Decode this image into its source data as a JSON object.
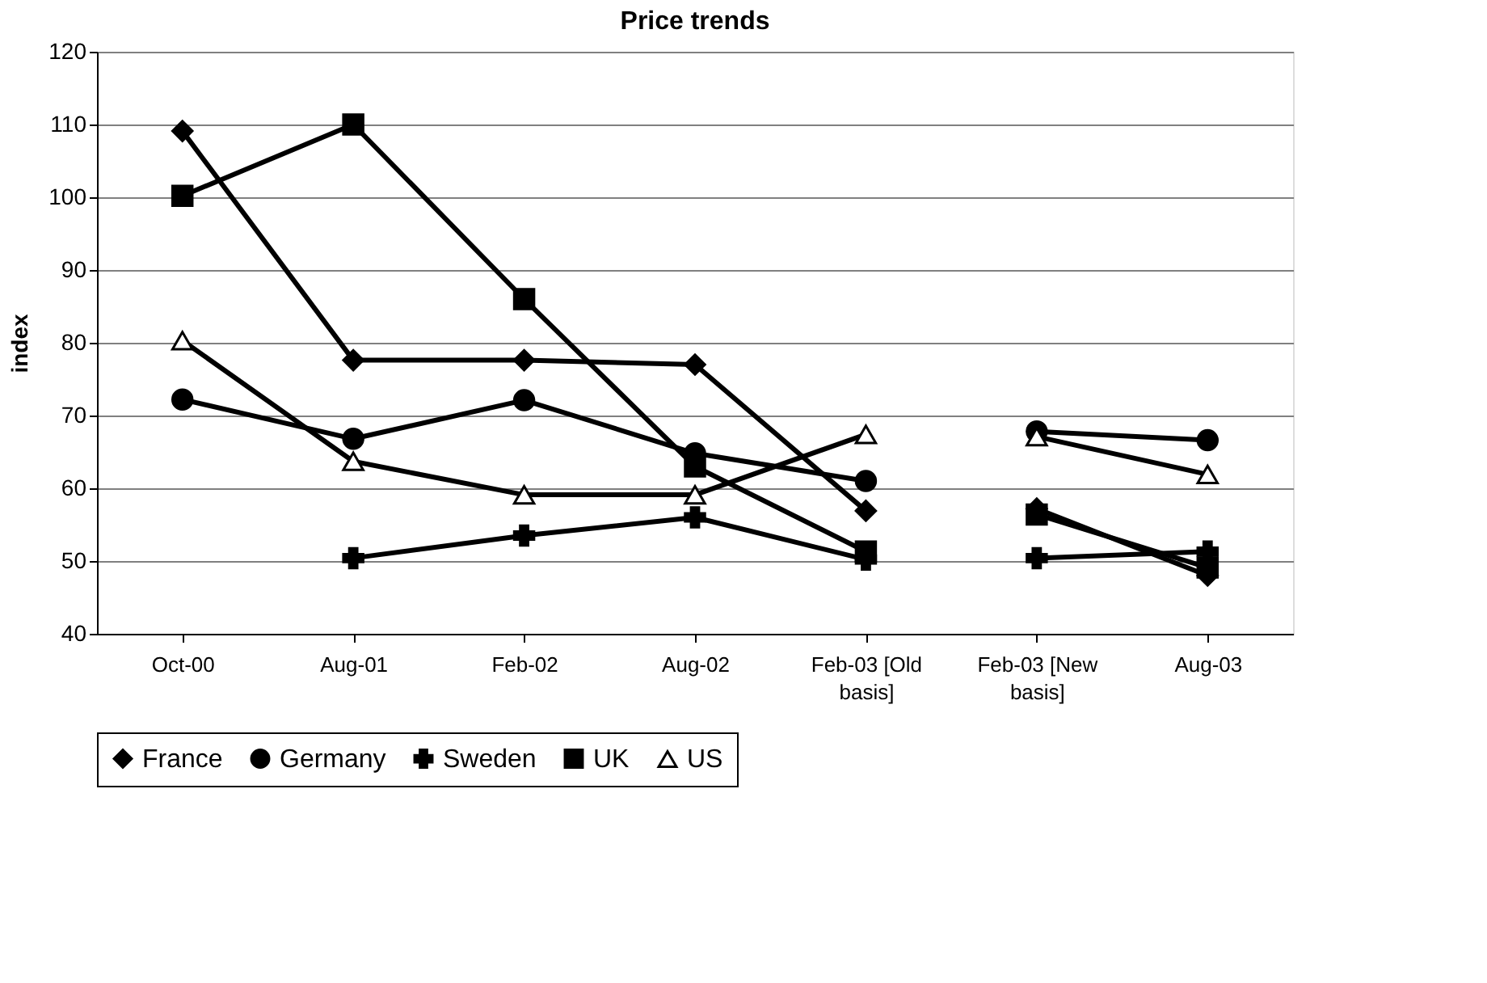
{
  "chart_data": {
    "type": "line",
    "title": "Price trends",
    "ylabel": "index",
    "categories": [
      "Oct-00",
      "Aug-01",
      "Feb-02",
      "Aug-02",
      "Feb-03 [Old basis]",
      "Feb-03 [New basis]",
      "Aug-03"
    ],
    "ylim": [
      40,
      120
    ],
    "yticks": [
      40,
      50,
      60,
      70,
      80,
      90,
      100,
      110,
      120
    ],
    "grid": "y",
    "legend": "bottom",
    "line_style": "solid",
    "series": [
      {
        "name": "France",
        "color": "#000000",
        "marker": "diamond",
        "x": [
          "Oct-00",
          "Aug-01",
          "Feb-02",
          "Aug-02",
          "Feb-03 [Old basis]"
        ],
        "values": [
          109.1,
          77.6,
          77.6,
          77.0,
          56.9
        ]
      },
      {
        "name": "Germany",
        "color": "#000000",
        "marker": "circle",
        "x": [
          "Oct-00",
          "Aug-01",
          "Feb-02",
          "Aug-02",
          "Feb-03 [Old basis]"
        ],
        "values": [
          72.2,
          66.8,
          72.1,
          64.8,
          61.0
        ]
      },
      {
        "name": "Sweden",
        "color": "#000000",
        "marker": "cross",
        "x": [
          "Oct-00",
          "Aug-01",
          "Feb-02",
          "Aug-02",
          "Feb-03 [Old basis]"
        ],
        "values": [
          null,
          50.4,
          53.5,
          56.0,
          50.2
        ]
      },
      {
        "name": "UK",
        "color": "#000000",
        "marker": "square",
        "x": [
          "Oct-00",
          "Aug-01",
          "Feb-02",
          "Aug-02",
          "Feb-03 [Old basis]"
        ],
        "values": [
          100.2,
          110.0,
          86.0,
          63.0,
          51.3
        ]
      },
      {
        "name": "US",
        "color": "#000000",
        "marker": "triangle",
        "x": [
          "Oct-00",
          "Aug-01",
          "Feb-02",
          "Aug-02",
          "Feb-03 [Old basis]"
        ],
        "values": [
          80.3,
          63.7,
          59.1,
          59.1,
          67.4
        ]
      },
      {
        "color": "#000000",
        "marker": "diamond",
        "x": [
          "Feb-03 [New basis]",
          "Aug-03"
        ],
        "values": [
          57.2,
          48.0
        ]
      },
      {
        "color": "#000000",
        "marker": "circle",
        "x": [
          "Feb-03 [New basis]",
          "Aug-03"
        ],
        "values": [
          67.8,
          66.6
        ]
      },
      {
        "color": "#000000",
        "marker": "cross",
        "x": [
          "Feb-03 [New basis]",
          "Aug-03"
        ],
        "values": [
          50.4,
          51.3
        ]
      },
      {
        "color": "#000000",
        "marker": "square",
        "x": [
          "Feb-03 [New basis]",
          "Aug-03"
        ],
        "values": [
          56.4,
          49.1
        ]
      },
      {
        "color": "#000000",
        "marker": "triangle",
        "x": [
          "Feb-03 [New basis]",
          "Aug-03"
        ],
        "values": [
          67.1,
          61.9
        ]
      }
    ]
  }
}
